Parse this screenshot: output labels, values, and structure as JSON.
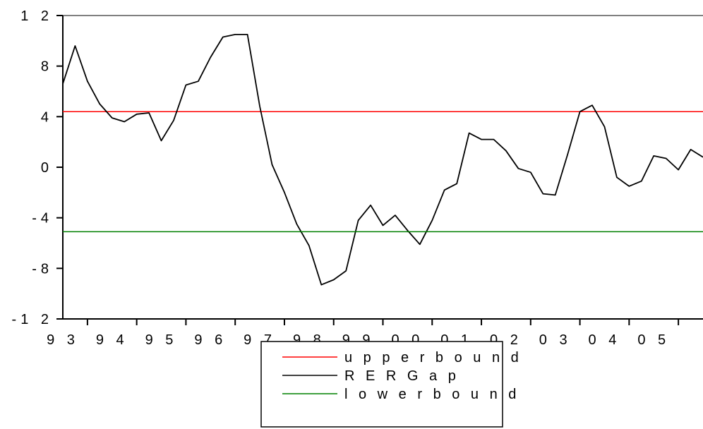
{
  "chart_data": {
    "type": "line",
    "title": "",
    "xlabel": "",
    "ylabel": "",
    "ylim": [
      -12,
      12
    ],
    "yticks": [
      -12,
      -8,
      -4,
      0,
      4,
      8,
      12
    ],
    "ytick_labels": [
      "-1 2",
      "-8",
      "-4",
      "0",
      "4",
      "8",
      "1 2"
    ],
    "xtick_labels": [
      "9 3",
      "9 4",
      "9 5",
      "9 6",
      "9 7",
      "9 8",
      "9 9",
      "0 0",
      "0 1",
      "0 2",
      "0 3",
      "0 4",
      "0 5"
    ],
    "xlim": [
      0,
      52
    ],
    "grid": false,
    "legend_position": "bottom-center",
    "series": [
      {
        "name": "u p p e r  b o u n d",
        "color": "#ff0000",
        "x": [
          0,
          52
        ],
        "values": [
          4.4,
          4.4
        ]
      },
      {
        "name": "R E R  G a p",
        "color": "#000000",
        "x": [
          0,
          1,
          2,
          3,
          4,
          5,
          6,
          7,
          8,
          9,
          10,
          11,
          12,
          13,
          14,
          15,
          16,
          17,
          18,
          19,
          20,
          21,
          22,
          23,
          24,
          25,
          26,
          27,
          28,
          29,
          30,
          31,
          32,
          33,
          34,
          35,
          36,
          37,
          38,
          39,
          40,
          41,
          42,
          43,
          44,
          45,
          46,
          47,
          48,
          49,
          50,
          51,
          52
        ],
        "values": [
          6.6,
          9.6,
          6.8,
          5.0,
          3.9,
          3.6,
          4.2,
          4.3,
          2.1,
          3.7,
          6.5,
          6.8,
          8.7,
          10.3,
          10.5,
          10.5,
          4.8,
          0.2,
          -2.0,
          -4.5,
          -6.2,
          -9.3,
          -8.9,
          -8.2,
          -4.2,
          -3.0,
          -4.6,
          -3.8,
          -5.0,
          -6.1,
          -4.2,
          -1.8,
          -1.3,
          2.7,
          2.2,
          2.2,
          1.3,
          -0.1,
          -0.4,
          -2.1,
          -2.2,
          1.0,
          4.4,
          4.9,
          3.2,
          -0.8,
          -1.5,
          -1.1,
          0.9,
          0.7,
          -0.2,
          1.4,
          0.8
        ]
      },
      {
        "name": "l o w e r  b o u n d",
        "color": "#008000",
        "x": [
          0,
          52
        ],
        "values": [
          -5.1,
          -5.1
        ]
      }
    ],
    "legend_order": [
      "u p p e r  b o u n d",
      "R E R  G a p",
      "l o w e r  b o u n d"
    ]
  }
}
